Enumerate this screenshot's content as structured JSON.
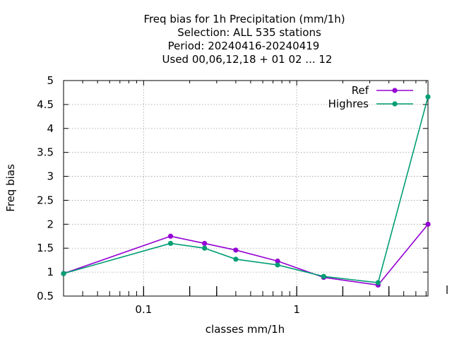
{
  "chart_data": {
    "type": "line",
    "title_lines": [
      "Freq bias  for 1h Precipitation (mm/1h)",
      "Selection: ALL    535 stations",
      "Period: 20240416-20240419",
      "Used  00,06,12,18 + 01 02 ... 12"
    ],
    "xlabel": "classes mm/1h",
    "ylabel": "Freq bias",
    "xscale": "log",
    "xlim": [
      0.03,
      7.2
    ],
    "ylim": [
      0.5,
      5
    ],
    "x_ticks": [
      {
        "value": 0.1,
        "label": "0.1"
      },
      {
        "value": 1,
        "label": "1"
      }
    ],
    "y_ticks": [
      {
        "value": 0.5,
        "label": "0.5"
      },
      {
        "value": 1,
        "label": "1"
      },
      {
        "value": 1.5,
        "label": "1.5"
      },
      {
        "value": 2,
        "label": "2"
      },
      {
        "value": 2.5,
        "label": "2.5"
      },
      {
        "value": 3,
        "label": "3"
      },
      {
        "value": 3.5,
        "label": "3.5"
      },
      {
        "value": 4,
        "label": "4"
      },
      {
        "value": 4.5,
        "label": "4.5"
      },
      {
        "value": 5,
        "label": "5"
      }
    ],
    "grid": true,
    "legend_position": "top-right",
    "series": [
      {
        "name": "Ref",
        "color": "#9400d3",
        "x": [
          0.03,
          0.15,
          0.25,
          0.4,
          0.75,
          1.5,
          3.4,
          7.2
        ],
        "y": [
          0.97,
          1.75,
          1.6,
          1.46,
          1.23,
          0.89,
          0.73,
          2.0
        ]
      },
      {
        "name": "Highres",
        "color": "#009e73",
        "x": [
          0.03,
          0.15,
          0.25,
          0.4,
          0.75,
          1.5,
          3.4,
          7.2
        ],
        "y": [
          0.97,
          1.6,
          1.5,
          1.27,
          1.15,
          0.91,
          0.78,
          4.66
        ]
      }
    ]
  }
}
